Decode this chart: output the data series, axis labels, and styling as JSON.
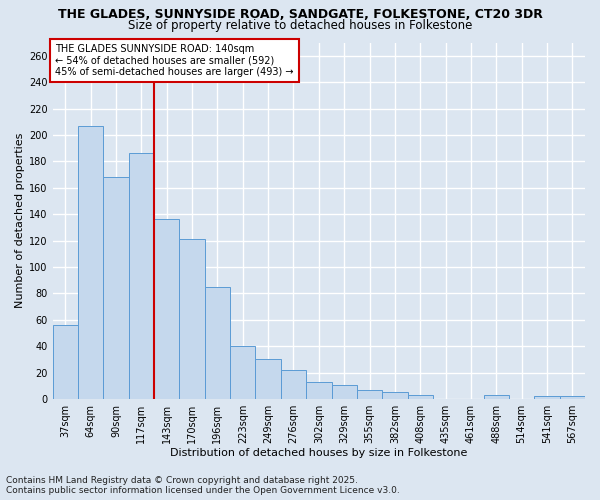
{
  "title_line1": "THE GLADES, SUNNYSIDE ROAD, SANDGATE, FOLKESTONE, CT20 3DR",
  "title_line2": "Size of property relative to detached houses in Folkestone",
  "xlabel": "Distribution of detached houses by size in Folkestone",
  "ylabel": "Number of detached properties",
  "categories": [
    "37sqm",
    "64sqm",
    "90sqm",
    "117sqm",
    "143sqm",
    "170sqm",
    "196sqm",
    "223sqm",
    "249sqm",
    "276sqm",
    "302sqm",
    "329sqm",
    "355sqm",
    "382sqm",
    "408sqm",
    "435sqm",
    "461sqm",
    "488sqm",
    "514sqm",
    "541sqm",
    "567sqm"
  ],
  "values": [
    56,
    207,
    168,
    186,
    136,
    121,
    85,
    40,
    30,
    22,
    13,
    11,
    7,
    5,
    3,
    0,
    0,
    3,
    0,
    2,
    2
  ],
  "bar_color": "#c5d8ed",
  "bar_edge_color": "#5b9bd5",
  "background_color": "#dce6f1",
  "grid_color": "#ffffff",
  "property_line_x": 3.5,
  "property_label": "THE GLADES SUNNYSIDE ROAD: 140sqm",
  "annotation_line1": "← 54% of detached houses are smaller (592)",
  "annotation_line2": "45% of semi-detached houses are larger (493) →",
  "annotation_box_color": "#ffffff",
  "annotation_box_edge": "#cc0000",
  "vline_color": "#cc0000",
  "ylim": [
    0,
    270
  ],
  "yticks": [
    0,
    20,
    40,
    60,
    80,
    100,
    120,
    140,
    160,
    180,
    200,
    220,
    240,
    260
  ],
  "footer_line1": "Contains HM Land Registry data © Crown copyright and database right 2025.",
  "footer_line2": "Contains public sector information licensed under the Open Government Licence v3.0.",
  "title_fontsize": 9.0,
  "subtitle_fontsize": 8.5,
  "label_fontsize": 8.0,
  "tick_fontsize": 7.0,
  "annotation_fontsize": 7.0,
  "footer_fontsize": 6.5
}
